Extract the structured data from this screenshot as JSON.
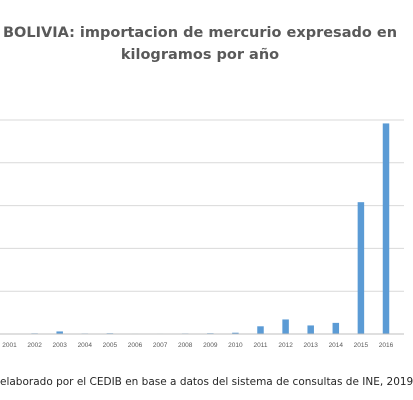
{
  "chart_data": {
    "type": "bar",
    "title_line1": "BOLIVIA: importacion de mercurio expresado en",
    "title_line2": "kilogramos por año",
    "categories": [
      "2001",
      "2002",
      "2003",
      "2004",
      "2005",
      "2006",
      "2007",
      "2008",
      "2009",
      "2010",
      "2011",
      "2012",
      "2013",
      "2014",
      "2015",
      "2016"
    ],
    "values": [
      0.5,
      0.8,
      3,
      0.7,
      0.9,
      0.6,
      0.6,
      0.7,
      0.9,
      1.5,
      9,
      17,
      10,
      13,
      154,
      246
    ],
    "ylim": [
      0,
      250
    ],
    "grid": true,
    "legend": "none",
    "bar_color": "#5b9bd5",
    "grid_color": "#d9d9d9",
    "axis_color": "#bfbfbf"
  },
  "source_note": "elaborado por el CEDIB en base a datos del sistema de consultas de INE, 2019"
}
